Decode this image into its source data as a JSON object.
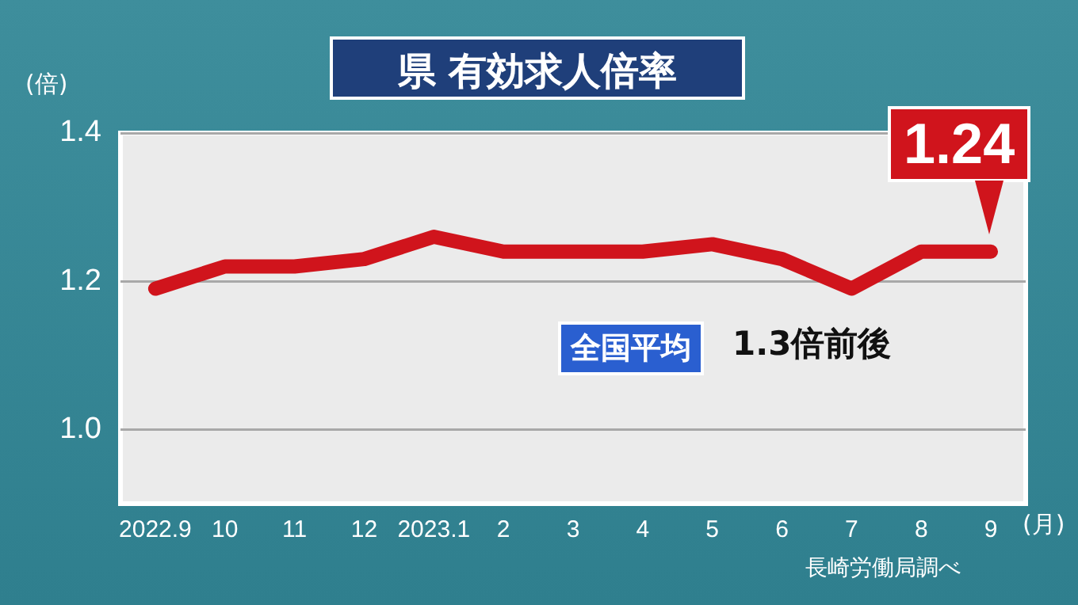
{
  "chart_data": {
    "type": "line",
    "title": "県 有効求人倍率",
    "ylabel": "(倍)",
    "xlabel": "(月)",
    "categories": [
      "2022.9",
      "10",
      "11",
      "12",
      "2023.1",
      "2",
      "3",
      "4",
      "5",
      "6",
      "7",
      "8",
      "9"
    ],
    "series": [
      {
        "color": "#d0141c",
        "values": [
          1.19,
          1.22,
          1.22,
          1.23,
          1.26,
          1.24,
          1.24,
          1.24,
          1.25,
          1.23,
          1.19,
          1.24,
          1.24
        ],
        "value_labels": [
          null,
          null,
          null,
          null,
          null,
          null,
          null,
          null,
          null,
          null,
          null,
          null,
          "1.24"
        ]
      }
    ],
    "ylim": [
      0.9,
      1.4
    ],
    "yticks": [
      {
        "value": 1,
        "label": "1.0"
      },
      {
        "value": 1.2,
        "label": "1.2"
      },
      {
        "value": 1.4,
        "label": "1.4"
      }
    ],
    "grid": "y",
    "legend": false,
    "marker": "none",
    "line_style": "solid",
    "annotations": [
      "全国平均",
      "1.3倍前後",
      "長崎労働局調べ"
    ]
  }
}
